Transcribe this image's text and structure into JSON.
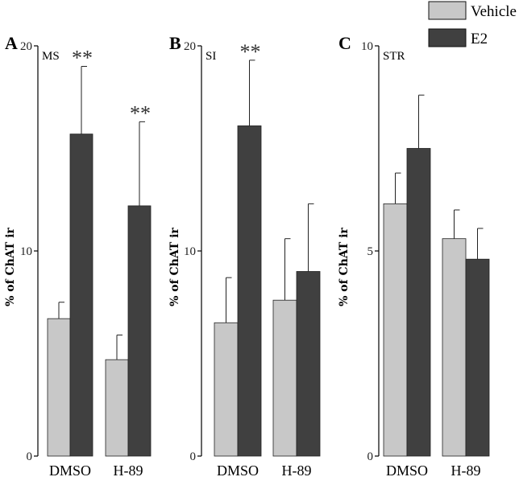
{
  "legend": {
    "items": [
      {
        "label": "Vehicle",
        "color": "#c8c8c8"
      },
      {
        "label": "E2",
        "color": "#404040"
      }
    ]
  },
  "chart_data": [
    {
      "type": "bar",
      "panel": "A",
      "region": "MS",
      "ylabel": "% of ChAT ir",
      "ylim": [
        0,
        20
      ],
      "yticks": [
        0,
        10,
        20
      ],
      "categories": [
        "DMSO",
        "H-89"
      ],
      "series": [
        {
          "name": "Vehicle",
          "values": [
            6.7,
            4.7
          ],
          "errors": [
            0.8,
            1.2
          ]
        },
        {
          "name": "E2",
          "values": [
            15.7,
            12.2
          ],
          "errors": [
            3.3,
            4.1
          ]
        }
      ],
      "significance": [
        {
          "category": 0,
          "series": 1,
          "label": "**"
        },
        {
          "category": 1,
          "series": 1,
          "label": "**"
        }
      ]
    },
    {
      "type": "bar",
      "panel": "B",
      "region": "SI",
      "ylabel": "% of ChAT ir",
      "ylim": [
        0,
        20
      ],
      "yticks": [
        0,
        10,
        20
      ],
      "categories": [
        "DMSO",
        "H-89"
      ],
      "series": [
        {
          "name": "Vehicle",
          "values": [
            6.5,
            7.6
          ],
          "errors": [
            2.2,
            3.0
          ]
        },
        {
          "name": "E2",
          "values": [
            16.1,
            9.0
          ],
          "errors": [
            3.2,
            3.3
          ]
        }
      ],
      "significance": [
        {
          "category": 0,
          "series": 1,
          "label": "**"
        }
      ]
    },
    {
      "type": "bar",
      "panel": "C",
      "region": "STR",
      "ylabel": "% of ChAT ir",
      "ylim": [
        0,
        10
      ],
      "yticks": [
        0,
        5,
        10
      ],
      "categories": [
        "DMSO",
        "H-89"
      ],
      "series": [
        {
          "name": "Vehicle",
          "values": [
            6.15,
            5.3
          ],
          "errors": [
            0.75,
            0.7
          ]
        },
        {
          "name": "E2",
          "values": [
            7.5,
            4.8
          ],
          "errors": [
            1.3,
            0.75
          ]
        }
      ],
      "significance": []
    }
  ]
}
